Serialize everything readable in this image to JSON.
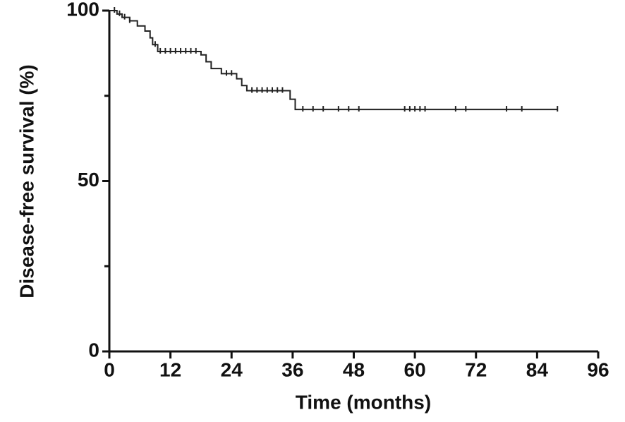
{
  "chart_data": {
    "type": "step",
    "x_label": "Time (months)",
    "y_label": "Disease-free survival (%)",
    "xlim": [
      0,
      96
    ],
    "xticks": [
      0,
      12,
      24,
      36,
      48,
      60,
      72,
      84,
      96
    ],
    "ylim": [
      0,
      100
    ],
    "yticks": [
      0,
      50,
      100
    ],
    "yminor_ticks": [
      25,
      75
    ],
    "color": "#222222",
    "x": [
      0,
      1.5,
      2.5,
      4,
      5.5,
      7,
      8,
      8.5,
      9.5,
      18,
      19,
      20,
      22,
      25,
      26,
      27,
      35.5,
      36.5,
      88
    ],
    "y": [
      100,
      99,
      98,
      97,
      95.5,
      94,
      92,
      90,
      88,
      87,
      85,
      83,
      81.5,
      80,
      78,
      76.5,
      74,
      71,
      71
    ],
    "censored_x": [
      1,
      2,
      3,
      4,
      9,
      10,
      11,
      12,
      13,
      14,
      15,
      16,
      17,
      23,
      24,
      28,
      29,
      30,
      31,
      32,
      33,
      34,
      38,
      40,
      42,
      45,
      47,
      49,
      58,
      59,
      60,
      61,
      62,
      68,
      70,
      78,
      81,
      88
    ],
    "censored_y": [
      100,
      99,
      98,
      97,
      90,
      88,
      88,
      88,
      88,
      88,
      88,
      88,
      88,
      81.5,
      81.5,
      76.5,
      76.5,
      76.5,
      76.5,
      76.5,
      76.5,
      76.5,
      71,
      71,
      71,
      71,
      71,
      71,
      71,
      71,
      71,
      71,
      71,
      71,
      71,
      71,
      71,
      71
    ]
  }
}
